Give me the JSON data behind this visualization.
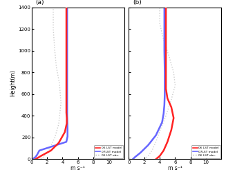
{
  "title_a": "(a)",
  "title_b": "(b)",
  "ylabel": "Height(m)",
  "xlabel": "m s⁻¹",
  "xlim": [
    0,
    12
  ],
  "ylim": [
    0,
    1400
  ],
  "yticks": [
    0,
    200,
    400,
    600,
    800,
    1000,
    1200,
    1400
  ],
  "xticks": [
    0,
    2,
    4,
    6,
    8,
    10
  ],
  "legend_labels": [
    "06 LST model",
    "07LST model",
    "06 LST obs."
  ],
  "case1": {
    "red_model_x": [
      0.5,
      1.2,
      2.5,
      3.5,
      4.3,
      4.55,
      4.55,
      4.5,
      4.5,
      4.5,
      4.5,
      4.5,
      4.5
    ],
    "red_model_y": [
      0,
      30,
      80,
      150,
      250,
      330,
      380,
      430,
      550,
      700,
      900,
      1100,
      1400
    ],
    "blue_model_x": [
      0.2,
      0.3,
      0.5,
      0.7,
      1.0,
      4.5,
      4.65,
      4.65,
      4.6,
      4.6,
      4.6,
      4.6,
      4.6
    ],
    "blue_model_y": [
      0,
      10,
      20,
      40,
      80,
      160,
      210,
      280,
      400,
      600,
      800,
      1100,
      1400
    ],
    "obs_x": [
      1.2,
      1.5,
      2.0,
      2.5,
      3.0,
      3.5,
      3.8,
      3.6,
      3.2,
      3.0,
      2.8,
      2.8,
      2.8
    ],
    "obs_y": [
      0,
      20,
      60,
      120,
      200,
      320,
      520,
      700,
      850,
      1000,
      1200,
      1300,
      1400
    ]
  },
  "case2": {
    "red_model_x": [
      3.5,
      4.0,
      4.5,
      5.0,
      5.5,
      5.8,
      5.5,
      5.0,
      4.8,
      4.8,
      4.8,
      4.8,
      4.8
    ],
    "red_model_y": [
      0,
      30,
      80,
      160,
      270,
      380,
      480,
      560,
      650,
      800,
      1000,
      1200,
      1400
    ],
    "blue_model_x": [
      0.5,
      0.8,
      1.5,
      2.5,
      3.5,
      4.3,
      4.5,
      4.6,
      4.65,
      4.65,
      4.6,
      4.6,
      4.6
    ],
    "blue_model_y": [
      0,
      20,
      60,
      130,
      220,
      340,
      420,
      500,
      600,
      800,
      1000,
      1200,
      1400
    ],
    "obs_x": [
      2.0,
      2.5,
      3.0,
      3.5,
      4.0,
      4.8,
      5.5,
      6.0,
      5.8,
      5.2,
      4.5,
      4.0,
      4.0
    ],
    "obs_y": [
      0,
      30,
      80,
      160,
      260,
      400,
      550,
      680,
      800,
      950,
      1100,
      1250,
      1400
    ]
  },
  "red_color": "#FF2222",
  "blue_color": "#6666FF",
  "obs_color": "#CCCCCC",
  "obs_color_dark": "#AAAAAA",
  "bg_color": "#FFFFFF"
}
